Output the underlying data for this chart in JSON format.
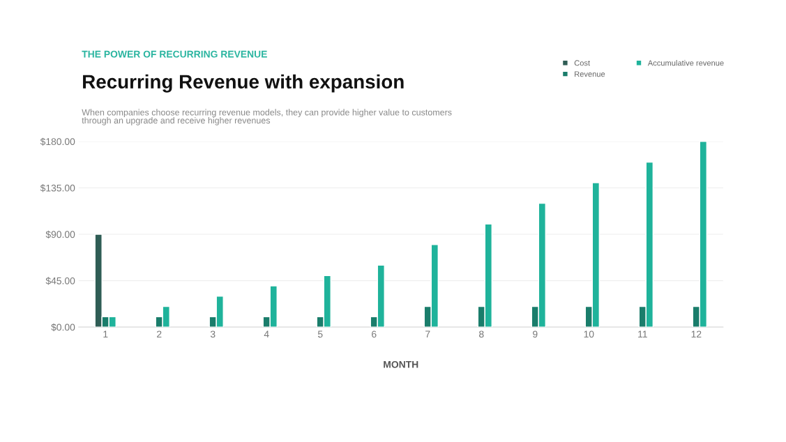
{
  "chart_data": {
    "type": "bar",
    "title": "Recurring Revenue with expansion",
    "subtitle": "When companies choose recurring revenue models, they can provide higher value to customers\nthrough an upgrade and receive higher revenues",
    "annotations": [
      "THE POWER OF RECURRING REVENUE"
    ],
    "xlabel": "MONTH",
    "categories": [
      "1",
      "2",
      "3",
      "4",
      "5",
      "6",
      "7",
      "8",
      "9",
      "10",
      "11",
      "12"
    ],
    "series": [
      {
        "name": "Cost",
        "color": "#2f5d55",
        "values": [
          90,
          null,
          null,
          null,
          null,
          null,
          null,
          null,
          null,
          null,
          null,
          null
        ]
      },
      {
        "name": "Revenue",
        "color": "#1a7d6b",
        "values": [
          10,
          10,
          10,
          10,
          10,
          10,
          20,
          20,
          20,
          20,
          20,
          20
        ]
      },
      {
        "name": "Accumulative revenue",
        "color": "#1fb39b",
        "values": [
          10,
          20,
          30,
          40,
          50,
          60,
          80,
          100,
          120,
          140,
          160,
          180
        ]
      }
    ],
    "ylim": [
      0,
      180
    ],
    "yticks": [
      {
        "value": 0,
        "label": "$0.00"
      },
      {
        "value": 45,
        "label": "$45.00"
      },
      {
        "value": 90,
        "label": "$90.00"
      },
      {
        "value": 135,
        "label": "$135.00"
      },
      {
        "value": 180,
        "label": "$180.00"
      }
    ],
    "grid": "y",
    "legend": "top right"
  }
}
